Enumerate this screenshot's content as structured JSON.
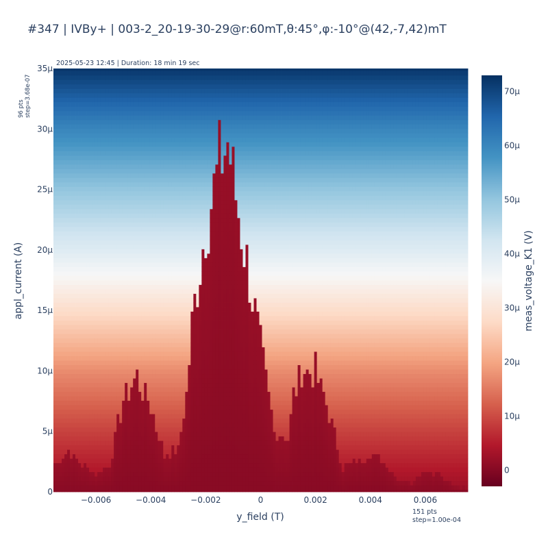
{
  "title": "#347 | IVBy+ | 003-2_20-19-30-29@r:60mT,θ:45°,φ:-10°@(42,-7,42)mT",
  "subtitle": "2025-05-23 12:45 | Duration: 18 min 19 sec",
  "y_points_note": [
    "96 pts",
    "step=3.68e-07"
  ],
  "x_points_note": [
    "151 pts",
    "step=1.00e-04"
  ],
  "chart_data": {
    "type": "heatmap",
    "xlabel": "y_field (T)",
    "ylabel": "appl_current (A)",
    "colorbar_label": "meas_voltage_K1 (V)",
    "colorscale": "RdBu (red = low, blue = high)",
    "x_range": [
      -0.0075,
      0.0075
    ],
    "x_points": 151,
    "x_step": 0.0001,
    "y_range": [
      0,
      3.5e-05
    ],
    "y_points": 96,
    "y_step": 3.68e-07,
    "color_range": [
      -3e-06,
      7.3e-05
    ],
    "x_tick_labels": [
      "−0.006",
      "−0.004",
      "−0.002",
      "0",
      "0.002",
      "0.004",
      "0.006"
    ],
    "x_tick_values": [
      -0.006,
      -0.004,
      -0.002,
      0,
      0.002,
      0.004,
      0.006
    ],
    "y_tick_labels": [
      "0",
      "5μ",
      "10μ",
      "15μ",
      "20μ",
      "25μ",
      "30μ",
      "35μ"
    ],
    "y_tick_values": [
      0,
      5e-06,
      1e-05,
      1.5e-05,
      2e-05,
      2.5e-05,
      3e-05,
      3.5e-05
    ],
    "colorbar_tick_labels": [
      "0",
      "10μ",
      "20μ",
      "30μ",
      "40μ",
      "50μ",
      "60μ",
      "70μ"
    ],
    "colorbar_tick_values": [
      0,
      1e-05,
      2e-05,
      3e-05,
      4e-05,
      5e-05,
      6e-05,
      7e-05
    ],
    "voltage_vs_current": {
      "current": [
        0,
        5e-06,
        1e-05,
        1.5e-05,
        2e-05,
        2.5e-05,
        3e-05,
        3.5e-05
      ],
      "voltage": [
        2e-06,
        9e-06,
        1.7e-05,
        2.8e-05,
        4e-05,
        5e-05,
        6e-05,
        7.2e-05
      ]
    },
    "switching_current_profile": {
      "x": [
        -0.0075,
        -0.007,
        -0.0065,
        -0.006,
        -0.0055,
        -0.0052,
        -0.005,
        -0.0045,
        -0.004,
        -0.0035,
        -0.003,
        -0.0027,
        -0.0025,
        -0.002,
        -0.0015,
        -0.0012,
        -0.001,
        -0.0005,
        0,
        0.0005,
        0.001,
        0.0012,
        0.0015,
        0.002,
        0.0025,
        0.003,
        0.0035,
        0.004,
        0.0045,
        0.005,
        0.0055,
        0.006,
        0.0065,
        0.007,
        0.0075
      ],
      "ic": [
        2.3e-06,
        3.4e-06,
        2.2e-06,
        1.4e-06,
        2.2e-06,
        5.5e-06,
        7.5e-06,
        9.5e-06,
        7e-06,
        3e-06,
        3.5e-06,
        8e-06,
        1.4e-05,
        2.2e-05,
        2.7e-05,
        2.9e-05,
        2.6e-05,
        1.9e-05,
        1.2e-05,
        5e-06,
        4.5e-06,
        8e-06,
        1e-05,
        1e-05,
        6.5e-06,
        2e-06,
        2.5e-06,
        3.2e-06,
        2.5e-06,
        1e-06,
        8e-07,
        1.7e-06,
        1.5e-06,
        5e-07,
        3e-07
      ]
    }
  }
}
